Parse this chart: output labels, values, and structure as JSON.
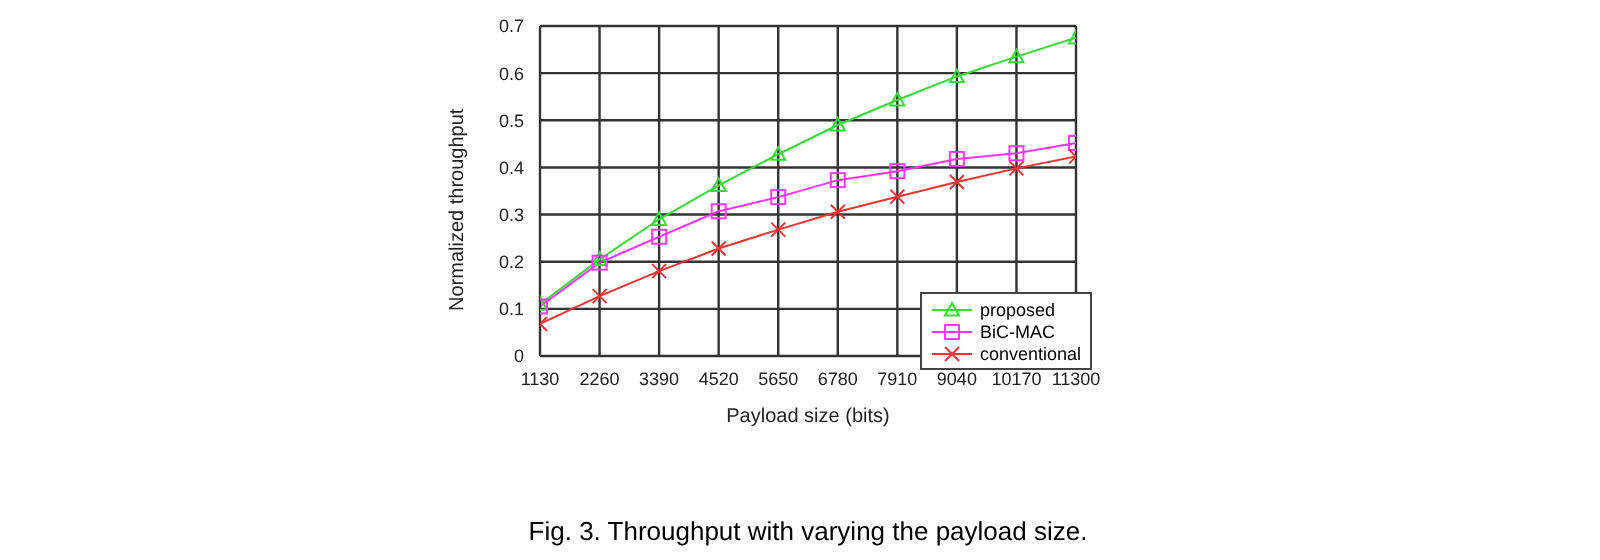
{
  "chart_data": {
    "type": "line",
    "x": [
      1130,
      2260,
      3390,
      4520,
      5650,
      6780,
      7910,
      9040,
      10170,
      11300
    ],
    "series": [
      {
        "name": "proposed",
        "color": "#33dd33",
        "marker": "triangle",
        "values": [
          0.11,
          0.205,
          0.29,
          0.362,
          0.428,
          0.49,
          0.543,
          0.593,
          0.635,
          0.675
        ]
      },
      {
        "name": "BiC-MAC",
        "color": "#ff33ff",
        "marker": "square",
        "values": [
          0.105,
          0.198,
          0.253,
          0.307,
          0.337,
          0.373,
          0.392,
          0.418,
          0.43,
          0.452
        ]
      },
      {
        "name": "conventional",
        "color": "#ee3333",
        "marker": "cross",
        "values": [
          0.068,
          0.127,
          0.18,
          0.228,
          0.268,
          0.306,
          0.338,
          0.369,
          0.398,
          0.423
        ]
      }
    ],
    "xlabel": "Payload size (bits)",
    "ylabel": "Normalized throughput",
    "xlim": [
      1130,
      11300
    ],
    "xticks": [
      1130,
      2260,
      3390,
      4520,
      5650,
      6780,
      7910,
      9040,
      10170,
      11300
    ],
    "ylim": [
      0,
      0.7
    ],
    "yticks": [
      0,
      0.1,
      0.2,
      0.3,
      0.4,
      0.5,
      0.6,
      0.7
    ],
    "grid": true,
    "legend": "right",
    "line_style": "solid",
    "annotations": [
      "Fig. 3. Throughput with varying the payload size."
    ]
  }
}
